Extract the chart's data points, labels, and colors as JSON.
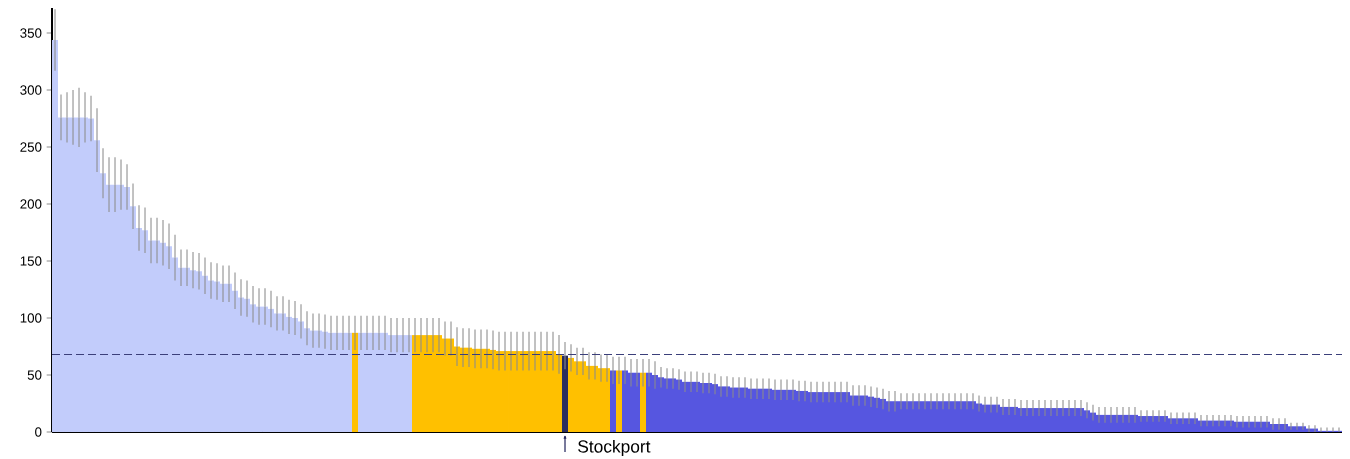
{
  "chart_data": {
    "type": "bar",
    "categories": [
      null,
      null,
      null,
      null,
      null,
      null,
      null,
      null,
      null,
      null,
      null,
      null,
      null,
      null,
      null,
      null,
      null,
      null,
      null,
      null,
      null,
      null,
      null,
      null,
      null,
      null,
      null,
      null,
      null,
      null,
      null,
      null,
      null,
      null,
      null,
      null,
      null,
      null,
      null,
      null,
      null,
      null,
      null,
      null,
      null,
      null,
      null,
      null,
      null,
      null,
      null,
      null,
      null,
      null,
      null,
      null,
      null,
      null,
      null,
      null,
      null,
      null,
      null,
      null,
      null,
      null,
      null,
      null,
      null,
      null,
      null,
      null,
      null,
      null,
      null,
      null,
      null,
      null,
      null,
      null,
      null,
      null,
      null,
      null,
      null,
      null,
      null,
      null,
      null,
      null,
      null,
      null,
      null,
      null,
      null,
      null,
      null,
      null,
      null,
      null,
      null,
      null,
      null,
      null,
      null,
      null,
      null,
      null,
      null,
      null,
      null,
      null,
      null,
      null,
      null,
      null,
      null,
      null,
      null,
      null,
      null,
      null,
      null,
      null,
      null,
      null,
      null,
      null,
      null,
      null,
      null,
      null,
      null,
      null,
      null,
      null,
      null,
      null,
      null,
      null,
      null,
      null,
      null,
      null,
      null,
      null,
      null,
      null,
      null,
      null,
      null,
      null,
      null,
      null,
      null,
      null,
      null,
      null,
      null,
      null,
      null,
      null,
      null,
      null,
      null,
      null,
      null,
      null,
      null,
      null,
      null,
      null,
      null,
      null,
      null,
      null,
      null,
      null,
      null,
      null,
      null,
      null,
      null,
      null,
      null,
      null,
      null,
      null,
      null,
      null,
      null,
      null,
      null,
      null,
      null,
      null,
      null,
      null,
      null,
      null,
      null,
      null,
      null,
      null,
      null,
      null,
      null,
      null,
      null,
      null,
      null,
      null,
      null,
      null,
      null
    ],
    "values": [
      344,
      276,
      276,
      276,
      276,
      276,
      275,
      256,
      227,
      217,
      217,
      217,
      215,
      198,
      179,
      177,
      168,
      168,
      166,
      163,
      153,
      144,
      144,
      142,
      141,
      137,
      133,
      132,
      130,
      130,
      124,
      118,
      117,
      112,
      110,
      110,
      108,
      104,
      104,
      101,
      100,
      97,
      91,
      89,
      89,
      88,
      87,
      87,
      87,
      87,
      87,
      87,
      87,
      87,
      87,
      87,
      85,
      85,
      85,
      85,
      85,
      85,
      85,
      85,
      85,
      82,
      82,
      75,
      74,
      74,
      73,
      73,
      73,
      72,
      71,
      71,
      71,
      71,
      71,
      71,
      71,
      71,
      71,
      71,
      68,
      67,
      65,
      62,
      62,
      58,
      58,
      56,
      56,
      54,
      54,
      54,
      52,
      52,
      52,
      52,
      50,
      48,
      47,
      47,
      46,
      44,
      44,
      44,
      43,
      43,
      42,
      40,
      40,
      39,
      39,
      39,
      38,
      38,
      38,
      38,
      37,
      37,
      37,
      37,
      36,
      36,
      35,
      35,
      35,
      35,
      35,
      35,
      35,
      32,
      32,
      32,
      31,
      30,
      29,
      27,
      27,
      27,
      27,
      27,
      27,
      27,
      27,
      27,
      27,
      27,
      27,
      27,
      27,
      27,
      25,
      24,
      24,
      24,
      22,
      22,
      22,
      21,
      21,
      21,
      21,
      21,
      21,
      21,
      21,
      21,
      21,
      21,
      19,
      17,
      15,
      15,
      15,
      15,
      15,
      15,
      15,
      14,
      14,
      14,
      14,
      14,
      12,
      12,
      12,
      12,
      12,
      10,
      10,
      10,
      10,
      10,
      10,
      9,
      9,
      9,
      9,
      9,
      9,
      7,
      7,
      7,
      5,
      5,
      5,
      3,
      3,
      1,
      1,
      1,
      1
    ],
    "errors": [
      27,
      20,
      22,
      24,
      26,
      22,
      20,
      28,
      22,
      24,
      24,
      22,
      20,
      20,
      20,
      20,
      20,
      20,
      20,
      20,
      20,
      16,
      16,
      16,
      16,
      16,
      16,
      16,
      16,
      16,
      16,
      16,
      16,
      16,
      16,
      16,
      16,
      15,
      15,
      15,
      15,
      15,
      15,
      15,
      15,
      15,
      15,
      15,
      15,
      15,
      15,
      15,
      15,
      15,
      15,
      15,
      15,
      15,
      15,
      15,
      15,
      15,
      15,
      15,
      15,
      15,
      15,
      17,
      17,
      17,
      17,
      17,
      17,
      17,
      17,
      17,
      17,
      17,
      17,
      17,
      17,
      17,
      17,
      17,
      17,
      12,
      12,
      12,
      12,
      12,
      12,
      12,
      12,
      12,
      12,
      12,
      12,
      12,
      12,
      12,
      12,
      9,
      9,
      9,
      9,
      9,
      9,
      9,
      9,
      9,
      9,
      9,
      9,
      9,
      9,
      9,
      9,
      9,
      9,
      9,
      9,
      9,
      9,
      9,
      9,
      9,
      9,
      9,
      9,
      9,
      9,
      9,
      9,
      9,
      9,
      9,
      9,
      9,
      9,
      9,
      9,
      7,
      7,
      7,
      7,
      7,
      7,
      7,
      7,
      7,
      7,
      7,
      7,
      7,
      7,
      7,
      7,
      7,
      7,
      7,
      7,
      7,
      7,
      7,
      7,
      7,
      7,
      7,
      7,
      7,
      7,
      7,
      7,
      7,
      7,
      7,
      7,
      7,
      7,
      7,
      7,
      5,
      5,
      5,
      5,
      5,
      5,
      5,
      5,
      5,
      5,
      5,
      5,
      5,
      5,
      5,
      5,
      5,
      5,
      5,
      5,
      5,
      5,
      5,
      5,
      5,
      3,
      3,
      3,
      3,
      3,
      [
        1,
        3
      ],
      [
        1,
        3
      ],
      [
        1,
        3
      ],
      [
        1,
        3
      ]
    ],
    "colors": [
      "#c2ccfb",
      "#c2ccfb",
      "#c2ccfb",
      "#c2ccfb",
      "#c2ccfb",
      "#c2ccfb",
      "#c2ccfb",
      "#c2ccfb",
      "#c2ccfb",
      "#c2ccfb",
      "#c2ccfb",
      "#c2ccfb",
      "#c2ccfb",
      "#c2ccfb",
      "#c2ccfb",
      "#c2ccfb",
      "#c2ccfb",
      "#c2ccfb",
      "#c2ccfb",
      "#c2ccfb",
      "#c2ccfb",
      "#c2ccfb",
      "#c2ccfb",
      "#c2ccfb",
      "#c2ccfb",
      "#c2ccfb",
      "#c2ccfb",
      "#c2ccfb",
      "#c2ccfb",
      "#c2ccfb",
      "#c2ccfb",
      "#c2ccfb",
      "#c2ccfb",
      "#c2ccfb",
      "#c2ccfb",
      "#c2ccfb",
      "#c2ccfb",
      "#c2ccfb",
      "#c2ccfb",
      "#c2ccfb",
      "#c2ccfb",
      "#c2ccfb",
      "#c2ccfb",
      "#c2ccfb",
      "#c2ccfb",
      "#c2ccfb",
      "#c2ccfb",
      "#c2ccfb",
      "#c2ccfb",
      "#c2ccfb",
      "#ffc000",
      "#c2ccfb",
      "#c2ccfb",
      "#c2ccfb",
      "#c2ccfb",
      "#c2ccfb",
      "#c2ccfb",
      "#c2ccfb",
      "#c2ccfb",
      "#c2ccfb",
      "#ffc000",
      "#ffc000",
      "#ffc000",
      "#ffc000",
      "#ffc000",
      "#ffc000",
      "#ffc000",
      "#ffc000",
      "#ffc000",
      "#ffc000",
      "#ffc000",
      "#ffc000",
      "#ffc000",
      "#ffc000",
      "#ffc000",
      "#ffc000",
      "#ffc000",
      "#ffc000",
      "#ffc000",
      "#ffc000",
      "#ffc000",
      "#ffc000",
      "#ffc000",
      "#ffc000",
      "#ffc000",
      "#2b2d5e",
      "#ffc000",
      "#ffc000",
      "#ffc000",
      "#ffc000",
      "#ffc000",
      "#ffc000",
      "#ffc000",
      "#5656e0",
      "#ffc000",
      "#5656e0",
      "#5656e0",
      "#5656e0",
      "#ffc000",
      "#5656e0",
      "#5656e0",
      "#5656e0",
      "#5656e0",
      "#5656e0",
      "#5656e0",
      "#5656e0",
      "#5656e0",
      "#5656e0",
      "#5656e0",
      "#5656e0",
      "#5656e0",
      "#5656e0",
      "#5656e0",
      "#5656e0",
      "#5656e0",
      "#5656e0",
      "#5656e0",
      "#5656e0",
      "#5656e0",
      "#5656e0",
      "#5656e0",
      "#5656e0",
      "#5656e0",
      "#5656e0",
      "#5656e0",
      "#5656e0",
      "#5656e0",
      "#5656e0",
      "#5656e0",
      "#5656e0",
      "#5656e0",
      "#5656e0",
      "#5656e0",
      "#5656e0",
      "#5656e0",
      "#5656e0",
      "#5656e0",
      "#5656e0",
      "#5656e0",
      "#5656e0",
      "#5656e0",
      "#5656e0",
      "#5656e0",
      "#5656e0",
      "#5656e0",
      "#5656e0",
      "#5656e0",
      "#5656e0",
      "#5656e0",
      "#5656e0",
      "#5656e0",
      "#5656e0",
      "#5656e0",
      "#5656e0",
      "#5656e0",
      "#5656e0",
      "#5656e0",
      "#5656e0",
      "#5656e0",
      "#5656e0",
      "#5656e0",
      "#5656e0",
      "#5656e0",
      "#5656e0",
      "#5656e0",
      "#5656e0",
      "#5656e0",
      "#5656e0",
      "#5656e0",
      "#5656e0",
      "#5656e0",
      "#5656e0",
      "#5656e0",
      "#5656e0",
      "#5656e0",
      "#5656e0",
      "#5656e0",
      "#5656e0",
      "#5656e0",
      "#5656e0",
      "#5656e0",
      "#5656e0",
      "#5656e0",
      "#5656e0",
      "#5656e0",
      "#5656e0",
      "#5656e0",
      "#5656e0",
      "#5656e0",
      "#5656e0",
      "#5656e0",
      "#5656e0",
      "#5656e0",
      "#5656e0",
      "#5656e0",
      "#5656e0",
      "#5656e0",
      "#5656e0",
      "#5656e0",
      "#5656e0",
      "#5656e0",
      "#5656e0",
      "#5656e0",
      "#5656e0",
      "#5656e0",
      "#5656e0",
      "#5656e0",
      "#5656e0",
      "#5656e0",
      "#5656e0",
      "#5656e0",
      "#5656e0",
      "#5656e0",
      "#5656e0",
      "#5656e0"
    ],
    "ylim": [
      0,
      372
    ],
    "yticks": [
      0,
      50,
      100,
      150,
      200,
      250,
      300,
      350
    ],
    "ref_lines": [
      {
        "axis": "y",
        "value": 68,
        "color": "#3b3f7a",
        "line_style": "dashed"
      }
    ],
    "annotations": [
      "Stockport"
    ]
  }
}
